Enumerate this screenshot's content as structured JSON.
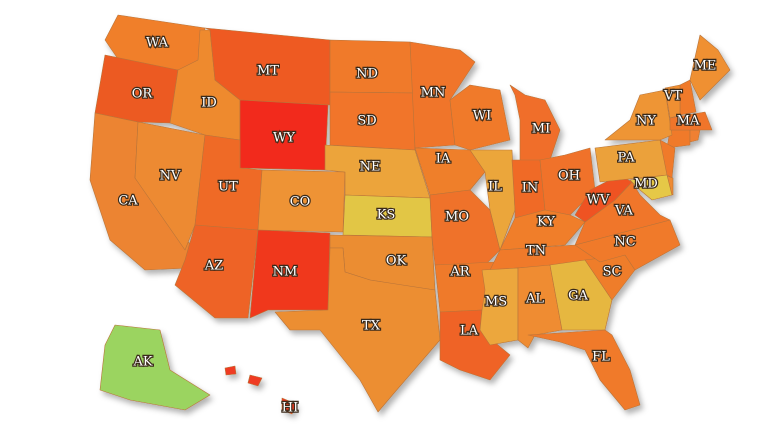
{
  "map": {
    "states": [
      {
        "label": "WA",
        "color": "#f07f2a"
      },
      {
        "label": "OR",
        "color": "#ec5a20"
      },
      {
        "label": "CA",
        "color": "#ec8430"
      },
      {
        "label": "NV",
        "color": "#ed8a30"
      },
      {
        "label": "ID",
        "color": "#ee8a2f"
      },
      {
        "label": "MT",
        "color": "#ee5a22"
      },
      {
        "label": "WY",
        "color": "#f22a1c"
      },
      {
        "label": "UT",
        "color": "#ef6b28"
      },
      {
        "label": "CO",
        "color": "#ee9335"
      },
      {
        "label": "AZ",
        "color": "#ee6426"
      },
      {
        "label": "NM",
        "color": "#f0391f"
      },
      {
        "label": "ND",
        "color": "#f07a2b"
      },
      {
        "label": "SD",
        "color": "#f17429"
      },
      {
        "label": "NE",
        "color": "#eca43a"
      },
      {
        "label": "KS",
        "color": "#e2c644"
      },
      {
        "label": "OK",
        "color": "#eb8d31"
      },
      {
        "label": "TX",
        "color": "#ec8e32"
      },
      {
        "label": "MN",
        "color": "#f07429"
      },
      {
        "label": "IA",
        "color": "#ef7f2b"
      },
      {
        "label": "MO",
        "color": "#ef722a"
      },
      {
        "label": "AR",
        "color": "#ef7a2b"
      },
      {
        "label": "LA",
        "color": "#ef6326"
      },
      {
        "label": "WI",
        "color": "#f07a2b"
      },
      {
        "label": "MI",
        "color": "#f06e29"
      },
      {
        "label": "IL",
        "color": "#eba63b"
      },
      {
        "label": "IN",
        "color": "#f06a28"
      },
      {
        "label": "OH",
        "color": "#f07229"
      },
      {
        "label": "KY",
        "color": "#f07e2b"
      },
      {
        "label": "TN",
        "color": "#f07a2b"
      },
      {
        "label": "MS",
        "color": "#eca73c"
      },
      {
        "label": "AL",
        "color": "#ef8c30"
      },
      {
        "label": "GA",
        "color": "#e6b740"
      },
      {
        "label": "FL",
        "color": "#f07a2b"
      },
      {
        "label": "SC",
        "color": "#ef7d2b"
      },
      {
        "label": "NC",
        "color": "#f07a2b"
      },
      {
        "label": "VA",
        "color": "#f07629"
      },
      {
        "label": "WV",
        "color": "#ef5322"
      },
      {
        "label": "PA",
        "color": "#eba13a"
      },
      {
        "label": "NY",
        "color": "#ee9534"
      },
      {
        "label": "MD",
        "color": "#e6c847"
      },
      {
        "label": "VT",
        "color": "#ef8f31"
      },
      {
        "label": "ME",
        "color": "#ef9033"
      },
      {
        "label": "MA",
        "color": "#f07429"
      },
      {
        "label": "AK",
        "color": "#9bd461"
      },
      {
        "label": "HI",
        "color": "#ef3a20"
      }
    ]
  }
}
